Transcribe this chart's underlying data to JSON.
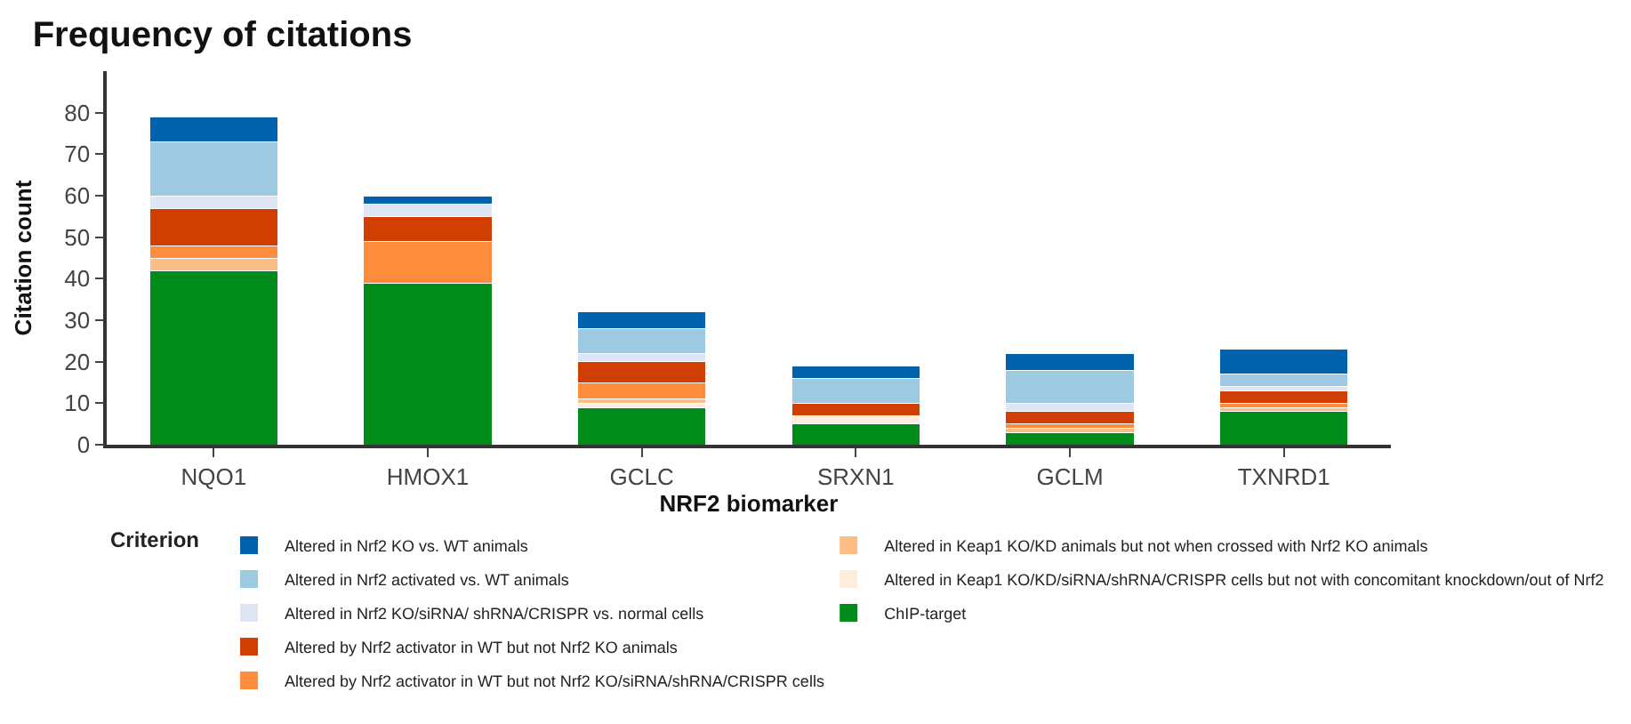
{
  "chart_data": {
    "type": "bar",
    "title": "Frequency of citations",
    "xlabel": "NRF2 biomarker",
    "ylabel": "Citation count",
    "legend_title": "Criterion",
    "stacked": true,
    "grid": false,
    "legend": "bottom",
    "categories": [
      "NQO1",
      "HMOX1",
      "GCLC",
      "SRXN1",
      "GCLM",
      "TXNRD1"
    ],
    "ylim": [
      0,
      90
    ],
    "yticks": [
      0,
      10,
      20,
      30,
      40,
      50,
      60,
      70,
      80
    ],
    "series": [
      {
        "name": "ChIP-target",
        "color": "#008c1a",
        "values": [
          42,
          39,
          9,
          5,
          3,
          8
        ]
      },
      {
        "name": "Altered in Keap1 KO/KD/siRNA/shRNA/CRISPR cells but not with concomitant knockdown/out of Nrf2",
        "color": "#feeddc",
        "values": [
          0,
          0,
          1,
          2,
          0,
          0
        ]
      },
      {
        "name": "Altered in Keap1 KO/KD animals but not when crossed with Nrf2 KO animals",
        "color": "#fdbe85",
        "values": [
          3,
          0,
          1,
          0,
          1,
          1
        ]
      },
      {
        "name": "Altered by Nrf2 activator in WT but not Nrf2 KO/siRNA/shRNA/CRISPR cells",
        "color": "#fd8d3c",
        "values": [
          3,
          10,
          4,
          0,
          1,
          1
        ]
      },
      {
        "name": "Altered by Nrf2 activator in WT but not Nrf2 KO animals",
        "color": "#d03f01",
        "values": [
          9,
          6,
          5,
          3,
          3,
          3
        ]
      },
      {
        "name": "Altered in Nrf2 KO/siRNA/ shRNA/CRISPR vs. normal cells",
        "color": "#dee6f5",
        "values": [
          3,
          3,
          2,
          0,
          2,
          1
        ]
      },
      {
        "name": "Altered in Nrf2 activated vs. WT animals",
        "color": "#9ecae1",
        "values": [
          13,
          0,
          6,
          6,
          8,
          3
        ]
      },
      {
        "name": "Altered in Nrf2 KO vs. WT animals",
        "color": "#0062ad",
        "values": [
          6,
          2,
          4,
          3,
          4,
          6
        ]
      }
    ]
  }
}
